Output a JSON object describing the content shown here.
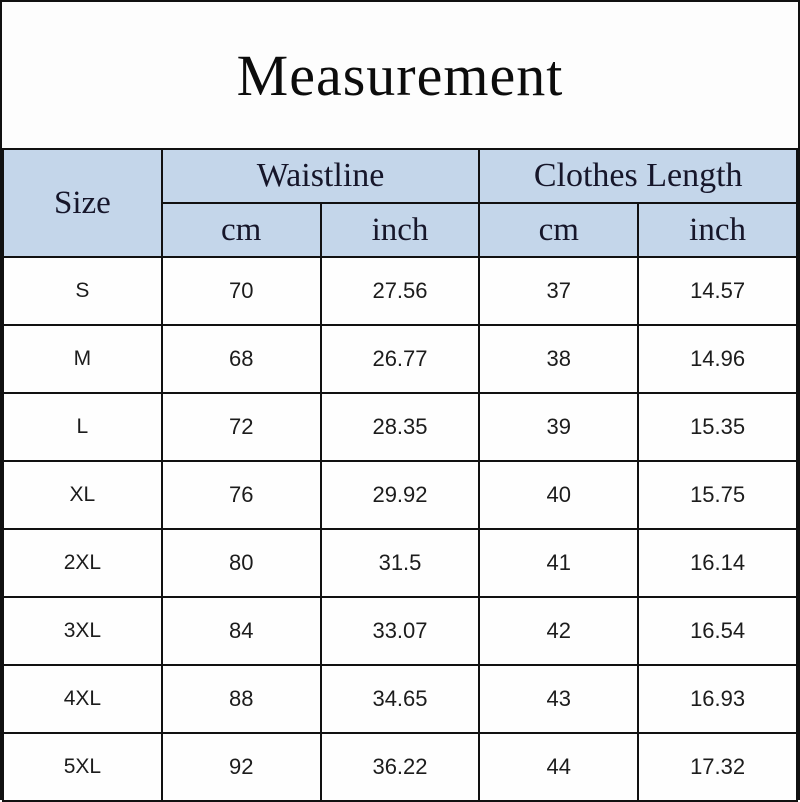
{
  "title": "Measurement",
  "chart_data": {
    "type": "table",
    "title": "Measurement",
    "header": {
      "row_label_column": "Size",
      "groups": [
        {
          "label": "Waistline",
          "subcolumns": [
            "cm",
            "inch"
          ]
        },
        {
          "label": "Clothes Length",
          "subcolumns": [
            "cm",
            "inch"
          ]
        }
      ]
    },
    "columns": [
      "Size",
      "Waistline cm",
      "Waistline inch",
      "Clothes Length cm",
      "Clothes Length inch"
    ],
    "rows": [
      {
        "size": "S",
        "values": [
          "70",
          "27.56",
          "37",
          "14.57"
        ]
      },
      {
        "size": "M",
        "values": [
          "68",
          "26.77",
          "38",
          "14.96"
        ]
      },
      {
        "size": "L",
        "values": [
          "72",
          "28.35",
          "39",
          "15.35"
        ]
      },
      {
        "size": "XL",
        "values": [
          "76",
          "29.92",
          "40",
          "15.75"
        ]
      },
      {
        "size": "2XL",
        "values": [
          "80",
          "31.5",
          "41",
          "16.14"
        ]
      },
      {
        "size": "3XL",
        "values": [
          "84",
          "33.07",
          "42",
          "16.54"
        ]
      },
      {
        "size": "4XL",
        "values": [
          "88",
          "34.65",
          "43",
          "16.93"
        ]
      },
      {
        "size": "5XL",
        "values": [
          "92",
          "36.22",
          "44",
          "17.32"
        ]
      }
    ]
  },
  "colors": {
    "header_bg": "#c4d6ea",
    "border": "#111111",
    "header_text": "#16162a",
    "body_text": "#1c1c1c"
  }
}
